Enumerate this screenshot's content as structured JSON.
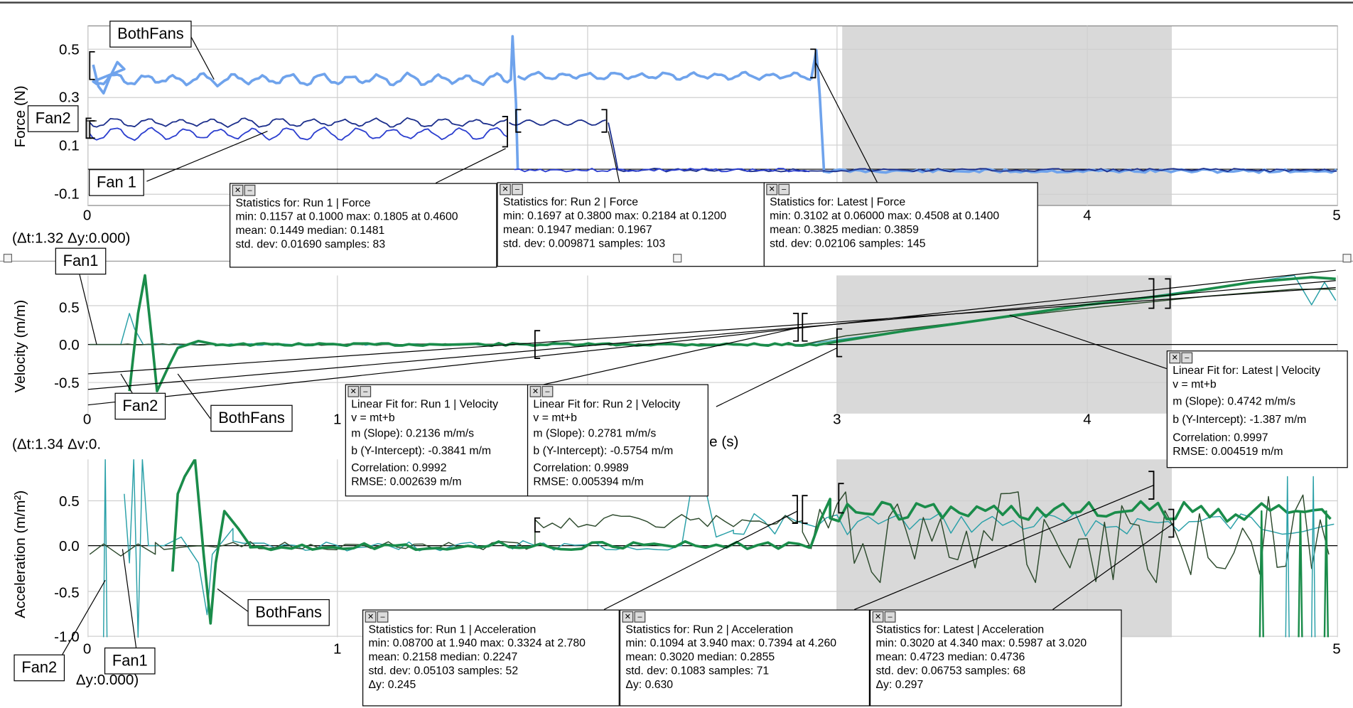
{
  "graphs": [
    {
      "id": "force",
      "ylabel": "Force (N)",
      "yticks": [
        "0.5",
        "0.3",
        "0.1",
        "-0.1"
      ],
      "xticks": [
        "0",
        "4",
        "5"
      ],
      "readout": "(Δt:1.32 Δy:0.000)",
      "callouts": [
        "BothFans",
        "Fan2",
        "Fan 1"
      ],
      "stats": [
        {
          "title": "Statistics for: Run 1 | Force",
          "lines": [
            "min: 0.1157 at 0.1000 max: 0.1805 at 0.4600",
            "mean: 0.1449 median: 0.1481",
            "std. dev: 0.01690 samples: 83"
          ]
        },
        {
          "title": "Statistics for: Run 2 | Force",
          "lines": [
            "min: 0.1697 at 0.3800 max: 0.2184 at 0.1200",
            "mean: 0.1947 median: 0.1967",
            "std. dev: 0.009871 samples: 103"
          ]
        },
        {
          "title": "Statistics for: Latest | Force",
          "lines": [
            "min: 0.3102 at 0.06000 max: 0.4508 at 0.1400",
            "mean: 0.3825 median: 0.3859",
            "std. dev: 0.02106 samples: 145"
          ]
        }
      ]
    },
    {
      "id": "velocity",
      "ylabel": "Velocity (m/m)",
      "yticks": [
        "0.5",
        "0.0",
        "-0.5"
      ],
      "xticks": [
        "0",
        "1",
        "3",
        "4"
      ],
      "xlabel_fragment": "e (s)",
      "readout": "(Δt:1.34 Δv:0.",
      "callouts": [
        "Fan1",
        "Fan2",
        "BothFans"
      ],
      "fits": [
        {
          "title": "Linear Fit for: Run 1 | Velocity",
          "lines": [
            "v = mt+b",
            "m (Slope): 0.2136 m/m/s",
            "b (Y-Intercept): -0.3841 m/m",
            "Correlation: 0.9992",
            "RMSE: 0.002639 m/m"
          ]
        },
        {
          "title": "Linear Fit for: Run 2 | Velocity",
          "lines": [
            "v = mt+b",
            "m (Slope): 0.2781 m/m/s",
            "b (Y-Intercept): -0.5754 m/m",
            "Correlation: 0.9989",
            "RMSE: 0.005394 m/m"
          ]
        },
        {
          "title": "Linear Fit for: Latest | Velocity",
          "lines": [
            "v = mt+b",
            "m (Slope): 0.4742 m/m/s",
            "b (Y-Intercept): -1.387 m/m",
            "Correlation: 0.9997",
            "RMSE: 0.004519 m/m"
          ]
        }
      ]
    },
    {
      "id": "acceleration",
      "ylabel": "Acceleration (m/m²)",
      "yticks": [
        "0.5",
        "0.0",
        "-0.5",
        "-1.0"
      ],
      "xticks": [
        "0",
        "1",
        "5"
      ],
      "readout": "Δy:0.000)",
      "callouts": [
        "BothFans",
        "Fan2",
        "Fan1"
      ],
      "stats": [
        {
          "title": "Statistics for: Run 1 | Acceleration",
          "lines": [
            "min: 0.08700 at 1.940 max: 0.3324 at 2.780",
            "mean: 0.2158 median: 0.2247",
            "std. dev: 0.05103 samples: 52",
            "Δy: 0.245"
          ]
        },
        {
          "title": "Statistics for: Run 2 | Acceleration",
          "lines": [
            "min: 0.1094 at 3.940 max: 0.7394 at 4.260",
            "mean: 0.3020 median: 0.2855",
            "std. dev: 0.1083 samples: 71",
            "Δy: 0.630"
          ]
        },
        {
          "title": "Statistics for: Latest | Acceleration",
          "lines": [
            "min: 0.3020 at 4.340 max: 0.5987 at 3.020",
            "mean: 0.4723 median: 0.4736",
            "std. dev: 0.06753 samples: 68",
            "Δy: 0.297"
          ]
        }
      ]
    }
  ],
  "icons": {
    "close": "close-x-icon",
    "minimize": "minimize-icon"
  },
  "colors": {
    "bothfans_force": "#6fa3ec",
    "fan_dark": "#1c2f8c",
    "fan_blue": "#2c3fcf",
    "green_thick": "#1a8c4a",
    "teal": "#2aa0a8",
    "dark_green": "#2d4a2d",
    "selection": "#d9d9d9"
  }
}
